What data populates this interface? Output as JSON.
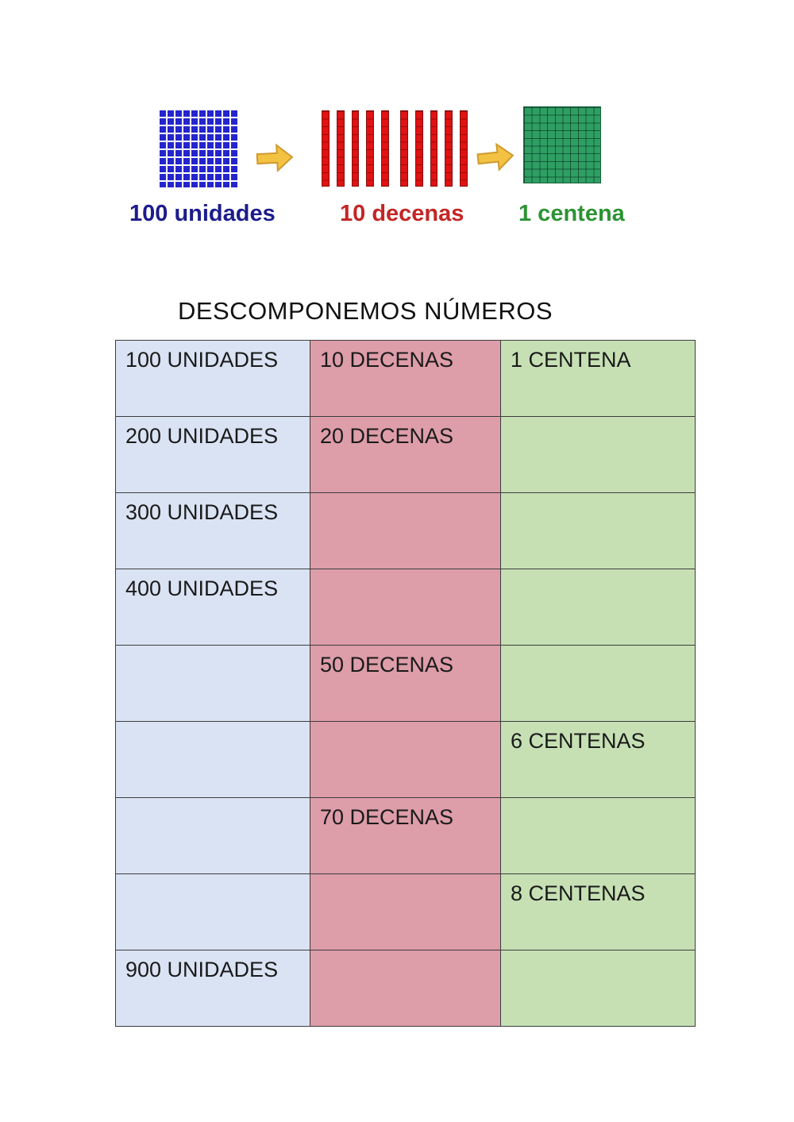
{
  "title": "DESCOMPONEMOS NÚMEROS",
  "figure": {
    "items": [
      {
        "id": "units",
        "label": "100 unidades",
        "block_color": "#2525cd",
        "label_color": "#1c1c8c"
      },
      {
        "id": "tens",
        "label": "10 decenas",
        "block_color": "#e11212",
        "label_color": "#c42525",
        "rod_count": 10
      },
      {
        "id": "hundreds",
        "label": "1 centena",
        "block_color": "#2f9e63",
        "label_color": "#2d9334"
      }
    ],
    "arrow_color": "#f4c242"
  },
  "table": {
    "columns": [
      {
        "id": "unidades",
        "color": "#dae3f3"
      },
      {
        "id": "decenas",
        "color": "#dd9da9"
      },
      {
        "id": "centenas",
        "color": "#c6e0b4"
      }
    ],
    "rows": [
      [
        "100 UNIDADES",
        "10 DECENAS",
        "1 CENTENA"
      ],
      [
        "200 UNIDADES",
        "20 DECENAS",
        ""
      ],
      [
        "300 UNIDADES",
        "",
        ""
      ],
      [
        "400 UNIDADES",
        "",
        ""
      ],
      [
        "",
        "50 DECENAS",
        ""
      ],
      [
        "",
        "",
        "6 CENTENAS"
      ],
      [
        "",
        "70 DECENAS",
        ""
      ],
      [
        "",
        "",
        "8 CENTENAS"
      ],
      [
        "900 UNIDADES",
        "",
        ""
      ]
    ]
  }
}
